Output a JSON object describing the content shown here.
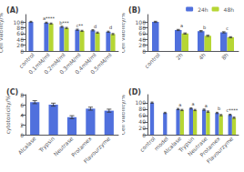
{
  "chart_data": [
    {
      "type": "bar",
      "title": "(A)",
      "ylabel": "Cell viability/%",
      "categories": [
        "control",
        "0.1mM/ml",
        "0.2mM/ml",
        "0.3mM/ml",
        "0.4mM/ml",
        "0.5mM/ml"
      ],
      "series": [
        {
          "values": [
            100,
            97,
            83,
            73,
            71,
            66
          ],
          "errors": [
            2,
            2,
            2,
            2,
            2,
            2
          ]
        },
        {
          "values": [
            null,
            94,
            79,
            69,
            63,
            58
          ],
          "errors": [
            null,
            2,
            2,
            2,
            2,
            2
          ]
        }
      ],
      "annotations": [
        null,
        "a****",
        "b***",
        "c**",
        "d",
        "d"
      ],
      "ylim": [
        0,
        125
      ],
      "yticks": [
        0,
        20,
        40,
        60,
        80,
        100
      ],
      "grid": false
    },
    {
      "type": "bar",
      "title": "(B)",
      "ylabel": "Cell viability/%",
      "categories": [
        "control",
        "2h",
        "4h",
        "8h"
      ],
      "series": [
        {
          "name": "24h",
          "values": [
            100,
            72,
            68,
            64
          ],
          "errors": [
            2,
            2,
            2,
            2
          ]
        },
        {
          "name": "48h",
          "values": [
            null,
            60,
            52,
            47
          ],
          "errors": [
            null,
            2,
            2,
            2
          ]
        }
      ],
      "annotations": [
        null,
        "a",
        "b",
        "c"
      ],
      "ylim": [
        0,
        125
      ],
      "yticks": [
        0,
        20,
        40,
        60,
        80,
        100
      ],
      "grid": false,
      "legend": "upper right"
    },
    {
      "type": "bar",
      "title": "(C)",
      "ylabel": "cytotoxicity/%",
      "categories": [
        "Alcalase",
        "Trypsin",
        "Neutrase",
        "Protamex",
        "Flavourzyme"
      ],
      "values": [
        6.5,
        6.0,
        3.5,
        5.2,
        4.8
      ],
      "errors": [
        0.3,
        0.3,
        0.3,
        0.3,
        0.3
      ],
      "ylim": [
        0,
        8
      ],
      "yticks": [
        0,
        2,
        4,
        6,
        8
      ],
      "grid": false
    },
    {
      "type": "bar",
      "title": "(D)",
      "ylabel": "Cell viability/%",
      "categories": [
        "control",
        "model",
        "Alcalase",
        "Trypsin",
        "Neutrase",
        "Protamex",
        "Flavourzyme"
      ],
      "series": [
        {
          "values": [
            100,
            68,
            80,
            82,
            78,
            68,
            62
          ],
          "errors": [
            2,
            2,
            2,
            2,
            2,
            2,
            2
          ]
        },
        {
          "values": [
            null,
            null,
            77,
            77,
            72,
            61,
            53
          ],
          "errors": [
            null,
            null,
            2,
            2,
            2,
            2,
            2
          ]
        }
      ],
      "annotations": [
        null,
        null,
        "a",
        "a",
        "a",
        "b",
        "c****"
      ],
      "ylim": [
        0,
        125
      ],
      "yticks": [
        0,
        20,
        40,
        60,
        80,
        100
      ],
      "grid": false
    }
  ]
}
